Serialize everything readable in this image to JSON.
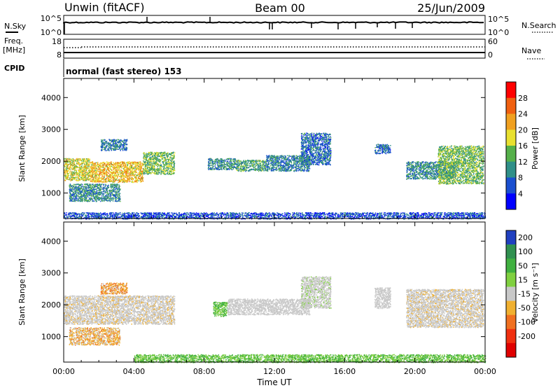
{
  "header": {
    "station": "Unwin (fitACF)",
    "beam": "Beam 00",
    "date": "25/Jun/2009"
  },
  "aux_panels": {
    "nsky_label": "N.Sky",
    "nsearch_label": "N.Search",
    "freq_label": "Freq.",
    "freq_unit": "[MHz]",
    "nave_label": "Nave",
    "cpid_label": "CPID",
    "cpid_text": "normal (fast stereo) 153",
    "noise_ticks_left": [
      "10^5",
      "10^0"
    ],
    "noise_ticks_right": [
      "10^5",
      "10^0"
    ],
    "freq_ticks": [
      "18",
      "8"
    ],
    "nave_ticks": [
      "60",
      "0"
    ]
  },
  "colorbars": {
    "power": {
      "label": "Power [dB]",
      "ticks": [
        "28",
        "24",
        "20",
        "16",
        "12",
        "8",
        "4"
      ],
      "colors": [
        "#0000ff",
        "#1a4fd0",
        "#2f8f88",
        "#55b04a",
        "#e8e030",
        "#f0a020",
        "#f06010",
        "#ff0000"
      ]
    },
    "velocity": {
      "label": "Velocity [m s⁻¹]",
      "ticks": [
        "200",
        "100",
        "50",
        "15",
        "-15",
        "-50",
        "-100",
        "-200"
      ],
      "colors": [
        "#2040c0",
        "#309050",
        "#40b040",
        "#80d040",
        "#c8c8c8",
        "#f0b030",
        "#f07020",
        "#f03010",
        "#e00000"
      ]
    }
  },
  "chart_data": [
    {
      "type": "heatmap",
      "quantity": "Power",
      "xlabel": "",
      "ylabel": "Slant Range [km]",
      "x_range_hours": [
        0,
        24
      ],
      "xlim": [
        "00:00",
        "00:00"
      ],
      "ylim_km": [
        200,
        4600
      ],
      "y_ticks": [
        1000,
        2000,
        3000,
        4000
      ],
      "value_ticks_db": [
        4,
        8,
        12,
        16,
        20,
        24,
        28
      ],
      "scatter_regions": [
        {
          "t0": 0.0,
          "t1": 1.5,
          "r0": 1400,
          "r1": 2100,
          "power_db": 18
        },
        {
          "t0": 1.5,
          "t1": 4.5,
          "r0": 1350,
          "r1": 2000,
          "power_db": 20
        },
        {
          "t0": 4.5,
          "t1": 6.3,
          "r0": 1600,
          "r1": 2300,
          "power_db": 14
        },
        {
          "t0": 0.3,
          "t1": 3.2,
          "r0": 750,
          "r1": 1300,
          "power_db": 10
        },
        {
          "t0": 2.1,
          "t1": 3.6,
          "r0": 2350,
          "r1": 2700,
          "power_db": 9
        },
        {
          "t0": 8.2,
          "t1": 9.8,
          "r0": 1750,
          "r1": 2100,
          "power_db": 10
        },
        {
          "t0": 9.8,
          "t1": 11.5,
          "r0": 1700,
          "r1": 2050,
          "power_db": 12
        },
        {
          "t0": 11.5,
          "t1": 14.0,
          "r0": 1700,
          "r1": 2200,
          "power_db": 9
        },
        {
          "t0": 13.5,
          "t1": 15.2,
          "r0": 1900,
          "r1": 2900,
          "power_db": 8
        },
        {
          "t0": 17.7,
          "t1": 18.6,
          "r0": 2250,
          "r1": 2550,
          "power_db": 8
        },
        {
          "t0": 19.5,
          "t1": 22.3,
          "r0": 1450,
          "r1": 2000,
          "power_db": 10
        },
        {
          "t0": 21.3,
          "t1": 23.9,
          "r0": 1300,
          "r1": 2500,
          "power_db": 14
        },
        {
          "t0": 0.0,
          "t1": 24.0,
          "r0": 200,
          "r1": 400,
          "power_db": 6
        }
      ]
    },
    {
      "type": "heatmap",
      "quantity": "Velocity",
      "xlabel": "Time UT",
      "ylabel": "Slant Range [km]",
      "x_range_hours": [
        0,
        24
      ],
      "x_ticks": [
        "00:00",
        "04:00",
        "08:00",
        "12:00",
        "16:00",
        "20:00",
        "00:00"
      ],
      "ylim_km": [
        200,
        4600
      ],
      "y_ticks": [
        1000,
        2000,
        3000,
        4000
      ],
      "value_ticks_ms": [
        -200,
        -100,
        -50,
        -15,
        15,
        50,
        100,
        200
      ],
      "scatter_regions": [
        {
          "t0": 0.0,
          "t1": 6.3,
          "r0": 1400,
          "r1": 2300,
          "velocity_ms": -5
        },
        {
          "t0": 0.3,
          "t1": 3.2,
          "r0": 750,
          "r1": 1300,
          "velocity_ms": -20
        },
        {
          "t0": 2.1,
          "t1": 3.6,
          "r0": 2350,
          "r1": 2700,
          "velocity_ms": -25
        },
        {
          "t0": 8.5,
          "t1": 9.3,
          "r0": 1650,
          "r1": 2100,
          "velocity_ms": 30
        },
        {
          "t0": 9.3,
          "t1": 14.0,
          "r0": 1700,
          "r1": 2200,
          "velocity_ms": 0
        },
        {
          "t0": 13.5,
          "t1": 15.2,
          "r0": 1900,
          "r1": 2900,
          "velocity_ms": 5
        },
        {
          "t0": 17.7,
          "t1": 18.6,
          "r0": 1900,
          "r1": 2550,
          "velocity_ms": 0
        },
        {
          "t0": 19.5,
          "t1": 23.9,
          "r0": 1300,
          "r1": 2500,
          "velocity_ms": -5
        },
        {
          "t0": 4.0,
          "t1": 24.0,
          "r0": 200,
          "r1": 450,
          "velocity_ms": 30
        }
      ]
    }
  ]
}
